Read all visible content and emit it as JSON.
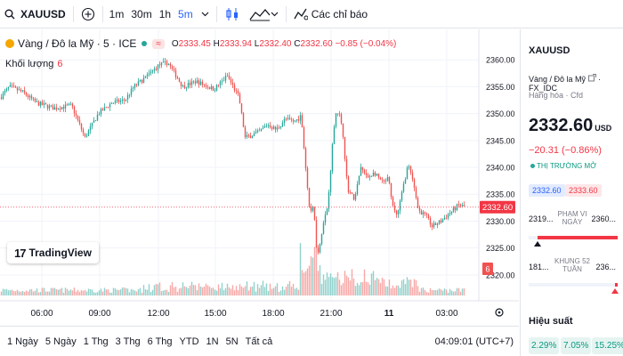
{
  "toolbar": {
    "symbol": "XAUUSD",
    "intervals": [
      "1m",
      "30m",
      "1h",
      "5m"
    ],
    "active_interval": "5m",
    "indicators_label": "Các chỉ báo"
  },
  "legend": {
    "title": "Vàng / Đô la Mỹ · 5 · ICE",
    "badge": "≈",
    "o_label": "O",
    "o": "2333.45",
    "h_label": "H",
    "h": "2333.94",
    "l_label": "L",
    "l": "2332.40",
    "c_label": "C",
    "c": "2332.60",
    "change": "−0.85 (−0.04%)",
    "volume_label": "Khối lượng",
    "volume_value": "6"
  },
  "chart_data": {
    "type": "candlestick",
    "symbol": "XAUUSD",
    "y_ticks": [
      "2360.00",
      "2355.00",
      "2350.00",
      "2345.00",
      "2340.00",
      "2335.00",
      "2330.00",
      "2325.00",
      "2320.00"
    ],
    "ylim": [
      2316.5,
      2365
    ],
    "x_ticks": [
      "06:00",
      "09:00",
      "12:00",
      "15:00",
      "18:00",
      "21:00",
      "11",
      "03:00"
    ],
    "last_price": "2332.60",
    "last_volume": "6",
    "colors": {
      "up": "#26a69a",
      "down": "#ef5350",
      "price_line": "#f23645"
    }
  },
  "tv_logo": "TradingView",
  "bottom": {
    "ranges": [
      "1 Ngày",
      "5 Ngày",
      "1 Thg",
      "3 Thg",
      "6 Thg",
      "YTD",
      "1N",
      "5N",
      "Tất cả"
    ],
    "clock": "04:09:01 (UTC+7)"
  },
  "panel": {
    "symbol": "XAUUSD",
    "name": "Vàng / Đô la Mỹ",
    "exchange": "FX_IDC",
    "category": "Hàng hóa · Cfd",
    "price": "2332.60",
    "currency": "USD",
    "change": "−20.31 (−0.86%)",
    "market_status": "THỊ TRƯỜNG MỞ",
    "bid": "2332.60",
    "ask": "2333.60",
    "day_range_label": "PHẠM VI NGÀY",
    "day_low": "2319...",
    "day_high": "2360...",
    "day_position": 0.1,
    "range52_label": "KHUNG 52 TUẦN",
    "low52": "181...",
    "high52": "236...",
    "range52_position": 0.97,
    "perf_title": "Hiệu suất",
    "perf": [
      "2.29%",
      "7.05%",
      "15.25%"
    ]
  }
}
